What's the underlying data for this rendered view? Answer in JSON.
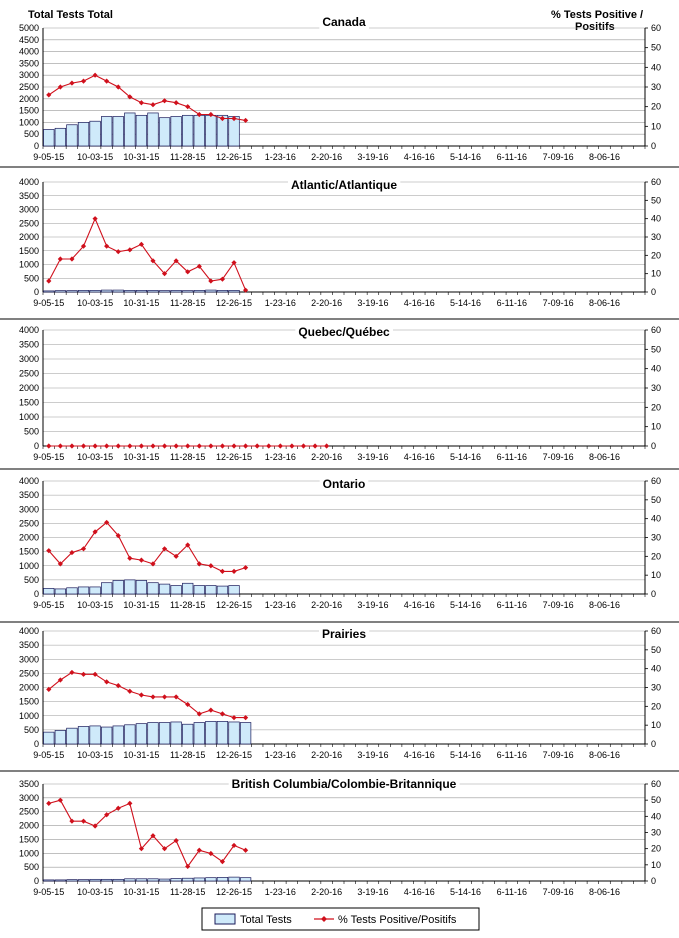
{
  "header": {
    "left_axis_title": "Total Tests Total",
    "right_axis_title_line1": "% Tests Positive /",
    "right_axis_title_line2": "Positifs"
  },
  "legend": {
    "bar_label": "Total Tests",
    "line_label": "% Tests Positive/Positifs"
  },
  "colors": {
    "bar_fill": "#cfeafa",
    "bar_stroke": "#1a1a5a",
    "line": "#d0101c",
    "grid": "#9a9a9a"
  },
  "chart_data": [
    {
      "type": "bar+line",
      "title": "Canada",
      "x_tick_labels": [
        "9-05-15",
        "10-03-15",
        "10-31-15",
        "11-28-15",
        "12-26-15",
        "1-23-16",
        "2-20-16",
        "3-19-16",
        "4-16-16",
        "5-14-16",
        "6-11-16",
        "7-09-16",
        "8-06-16"
      ],
      "num_weeks": 52,
      "y_left_ticks": [
        0,
        500,
        1000,
        1500,
        2000,
        2500,
        3000,
        3500,
        4000,
        4500,
        5000
      ],
      "ylim_left": [
        0,
        5000
      ],
      "y_right_ticks": [
        0,
        10,
        20,
        30,
        40,
        50,
        60
      ],
      "ylim_right": [
        0,
        60
      ],
      "bars": [
        700,
        750,
        900,
        1000,
        1050,
        1250,
        1250,
        1400,
        1300,
        1400,
        1200,
        1250,
        1300,
        1300,
        1300,
        1300,
        1250
      ],
      "line": [
        26,
        30,
        32,
        33,
        36,
        33,
        30,
        25,
        22,
        21,
        23,
        22,
        20,
        16,
        16,
        14,
        14,
        13
      ]
    },
    {
      "type": "bar+line",
      "title": "Atlantic/Atlantique",
      "x_tick_labels": [
        "9-05-15",
        "10-03-15",
        "10-31-15",
        "11-28-15",
        "12-26-15",
        "1-23-16",
        "2-20-16",
        "3-19-16",
        "4-16-16",
        "5-14-16",
        "6-11-16",
        "7-09-16",
        "8-06-16"
      ],
      "num_weeks": 52,
      "y_left_ticks": [
        0,
        500,
        1000,
        1500,
        2000,
        2500,
        3000,
        3500,
        4000
      ],
      "ylim_left": [
        0,
        4000
      ],
      "y_right_ticks": [
        0,
        10,
        20,
        30,
        40,
        50,
        60
      ],
      "ylim_right": [
        0,
        60
      ],
      "bars": [
        40,
        50,
        50,
        60,
        60,
        70,
        70,
        60,
        60,
        60,
        50,
        60,
        50,
        60,
        70,
        60,
        60
      ],
      "line": [
        6,
        18,
        18,
        25,
        40,
        25,
        22,
        23,
        26,
        17,
        10,
        17,
        11,
        14,
        6,
        7,
        16,
        1
      ]
    },
    {
      "type": "bar+line",
      "title": "Quebec/Québec",
      "x_tick_labels": [
        "9-05-15",
        "10-03-15",
        "10-31-15",
        "11-28-15",
        "12-26-15",
        "1-23-16",
        "2-20-16",
        "3-19-16",
        "4-16-16",
        "5-14-16",
        "6-11-16",
        "7-09-16",
        "8-06-16"
      ],
      "num_weeks": 52,
      "y_left_ticks": [
        0,
        500,
        1000,
        1500,
        2000,
        2500,
        3000,
        3500,
        4000
      ],
      "ylim_left": [
        0,
        4000
      ],
      "y_right_ticks": [
        0,
        10,
        20,
        30,
        40,
        50,
        60
      ],
      "ylim_right": [
        0,
        60
      ],
      "bars": [
        0,
        0,
        0,
        0,
        0,
        0,
        0,
        0,
        0,
        0,
        0,
        0,
        0,
        0,
        0,
        0,
        0
      ],
      "line": [
        0,
        0,
        0,
        0,
        0,
        0,
        0,
        0,
        0,
        0,
        0,
        0,
        0,
        0,
        0,
        0,
        0,
        0,
        0,
        0,
        0,
        0,
        0,
        0,
        0
      ]
    },
    {
      "type": "bar+line",
      "title": "Ontario",
      "x_tick_labels": [
        "9-05-15",
        "10-03-15",
        "10-31-15",
        "11-28-15",
        "12-26-15",
        "1-23-16",
        "2-20-16",
        "3-19-16",
        "4-16-16",
        "5-14-16",
        "6-11-16",
        "7-09-16",
        "8-06-16"
      ],
      "num_weeks": 52,
      "y_left_ticks": [
        0,
        500,
        1000,
        1500,
        2000,
        2500,
        3000,
        3500,
        4000
      ],
      "ylim_left": [
        0,
        4000
      ],
      "y_right_ticks": [
        0,
        10,
        20,
        30,
        40,
        50,
        60
      ],
      "ylim_right": [
        0,
        60
      ],
      "bars": [
        200,
        180,
        220,
        250,
        250,
        400,
        480,
        500,
        480,
        400,
        350,
        300,
        380,
        300,
        300,
        280,
        300
      ],
      "line": [
        23,
        16,
        22,
        24,
        33,
        38,
        31,
        19,
        18,
        16,
        24,
        20,
        26,
        16,
        15,
        12,
        12,
        14
      ]
    },
    {
      "type": "bar+line",
      "title": "Prairies",
      "x_tick_labels": [
        "9-05-15",
        "10-03-15",
        "10-31-15",
        "11-28-15",
        "12-26-15",
        "1-23-16",
        "2-20-16",
        "3-19-16",
        "4-16-16",
        "5-14-16",
        "6-11-16",
        "7-09-16",
        "8-06-16"
      ],
      "num_weeks": 52,
      "y_left_ticks": [
        0,
        500,
        1000,
        1500,
        2000,
        2500,
        3000,
        3500,
        4000
      ],
      "ylim_left": [
        0,
        4000
      ],
      "y_right_ticks": [
        0,
        10,
        20,
        30,
        40,
        50,
        60
      ],
      "ylim_right": [
        0,
        60
      ],
      "bars": [
        420,
        480,
        560,
        620,
        640,
        600,
        640,
        680,
        720,
        760,
        760,
        780,
        700,
        760,
        800,
        800,
        780,
        760
      ],
      "line": [
        29,
        34,
        38,
        37,
        37,
        33,
        31,
        28,
        26,
        25,
        25,
        25,
        21,
        16,
        18,
        16,
        14,
        14
      ]
    },
    {
      "type": "bar+line",
      "title": "British Columbia/Colombie-Britannique",
      "x_tick_labels": [
        "9-05-15",
        "10-03-15",
        "10-31-15",
        "11-28-15",
        "12-26-15",
        "1-23-16",
        "2-20-16",
        "3-19-16",
        "4-16-16",
        "5-14-16",
        "6-11-16",
        "7-09-16",
        "8-06-16"
      ],
      "num_weeks": 52,
      "y_left_ticks": [
        0,
        500,
        1000,
        1500,
        2000,
        2500,
        3000,
        3500
      ],
      "ylim_left": [
        0,
        3500
      ],
      "y_right_ticks": [
        0,
        10,
        20,
        30,
        40,
        50,
        60
      ],
      "ylim_right": [
        0,
        60
      ],
      "bars": [
        40,
        40,
        50,
        50,
        60,
        60,
        60,
        80,
        80,
        80,
        70,
        90,
        100,
        110,
        120,
        130,
        140,
        120
      ],
      "line": [
        48,
        50,
        37,
        37,
        34,
        41,
        45,
        48,
        20,
        28,
        20,
        25,
        9,
        19,
        17,
        12,
        22,
        19
      ]
    }
  ]
}
